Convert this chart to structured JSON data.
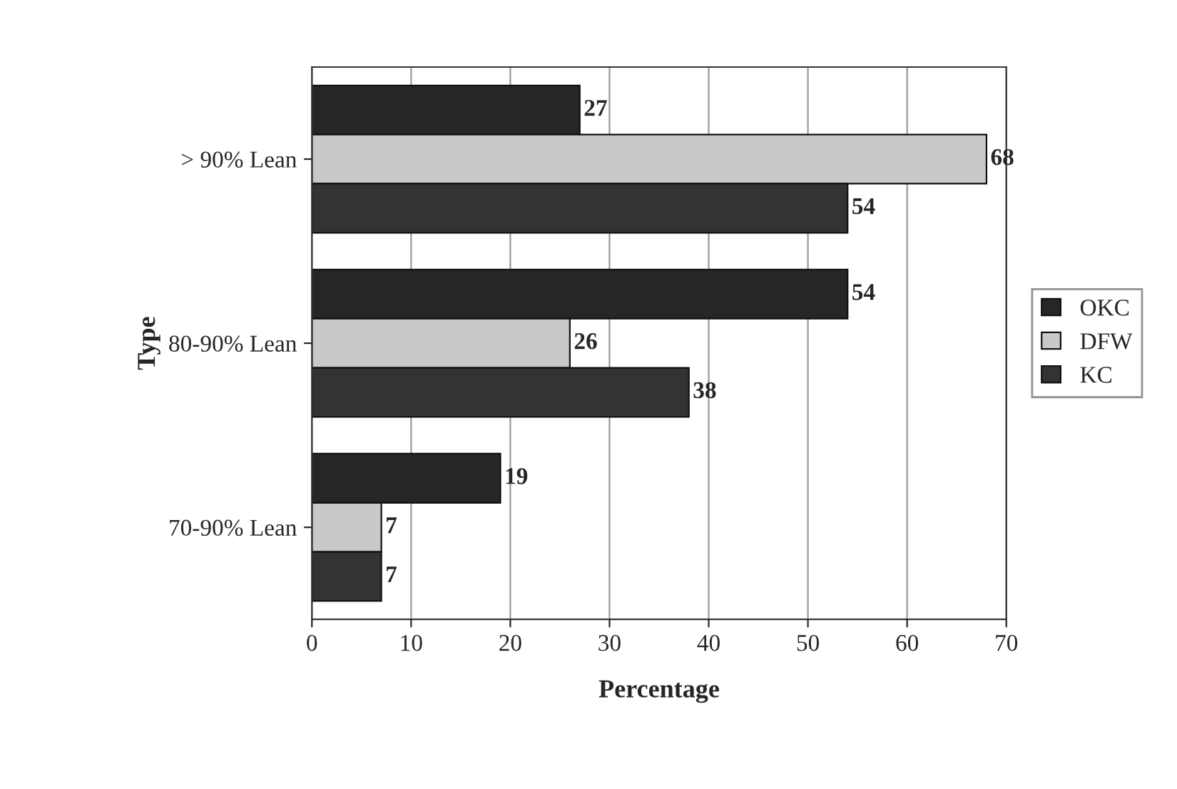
{
  "chart_data": {
    "type": "bar",
    "orientation": "horizontal",
    "xlabel": "Percentage",
    "ylabel": "Type",
    "categories": [
      "> 90% Lean",
      "80-90% Lean",
      "70-90% Lean"
    ],
    "series": [
      {
        "name": "OKC",
        "color": "#262626",
        "values": [
          27,
          54,
          19
        ]
      },
      {
        "name": "DFW",
        "color": "#c9c9c9",
        "values": [
          68,
          26,
          7
        ]
      },
      {
        "name": "KC",
        "color": "#333333",
        "values": [
          54,
          38,
          7
        ]
      }
    ],
    "xlim": [
      0,
      70
    ],
    "xticks": [
      0,
      10,
      20,
      30,
      40,
      50,
      60,
      70
    ],
    "grid": "x",
    "legend": "right",
    "data_labels": true
  }
}
